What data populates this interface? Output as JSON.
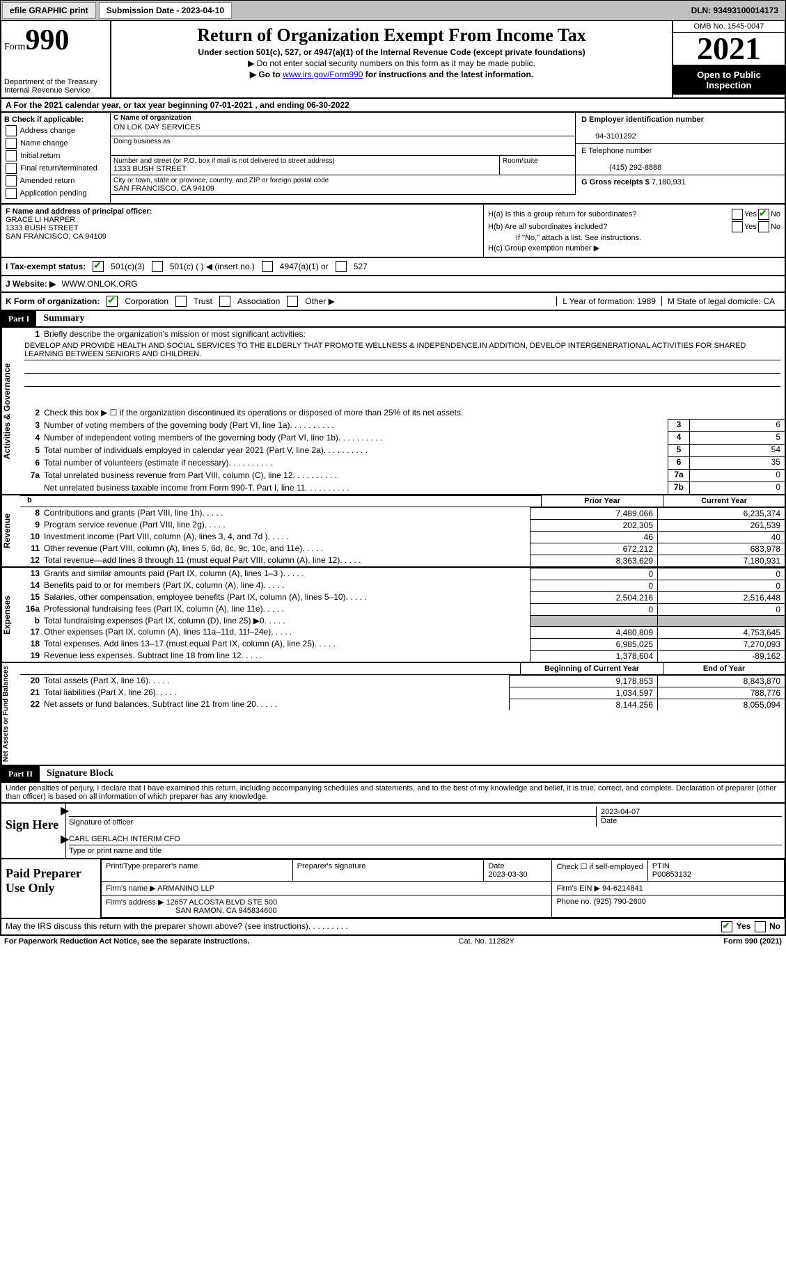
{
  "topbar": {
    "efile": "efile GRAPHIC print",
    "submission": "Submission Date - 2023-04-10",
    "dln": "DLN: 93493100014173"
  },
  "header": {
    "form_word": "Form",
    "form_num": "990",
    "dept": "Department of the Treasury Internal Revenue Service",
    "title": "Return of Organization Exempt From Income Tax",
    "subtitle": "Under section 501(c), 527, or 4947(a)(1) of the Internal Revenue Code (except private foundations)",
    "note1": "▶ Do not enter social security numbers on this form as it may be made public.",
    "note2_pre": "▶ Go to ",
    "note2_link": "www.irs.gov/Form990",
    "note2_post": " for instructions and the latest information.",
    "omb": "OMB No. 1545-0047",
    "year": "2021",
    "open": "Open to Public Inspection"
  },
  "rowA": "A  For the 2021 calendar year, or tax year beginning 07-01-2021   , and ending 06-30-2022",
  "sectionB": {
    "title": "B Check if applicable:",
    "opts": [
      "Address change",
      "Name change",
      "Initial return",
      "Final return/terminated",
      "Amended return",
      "Application pending"
    ]
  },
  "sectionC": {
    "name_lbl": "C Name of organization",
    "name": "ON LOK DAY SERVICES",
    "dba_lbl": "Doing business as",
    "addr_lbl": "Number and street (or P.O. box if mail is not delivered to street address)",
    "addr": "1333 BUSH STREET",
    "room_lbl": "Room/suite",
    "city_lbl": "City or town, state or province, country, and ZIP or foreign postal code",
    "city": "SAN FRANCISCO, CA  94109"
  },
  "sectionD": {
    "lbl": "D Employer identification number",
    "val": "94-3101292"
  },
  "sectionE": {
    "lbl": "E Telephone number",
    "val": "(415) 292-8888"
  },
  "sectionG": {
    "lbl": "G Gross receipts $",
    "val": "7,180,931"
  },
  "sectionF": {
    "lbl": "F Name and address of principal officer:",
    "name": "GRACE LI HARPER",
    "addr1": "1333 BUSH STREET",
    "addr2": "SAN FRANCISCO, CA  94109"
  },
  "sectionH": {
    "ha": "H(a)  Is this a group return for subordinates?",
    "hb": "H(b)  Are all subordinates included?",
    "hb_note": "If \"No,\" attach a list. See instructions.",
    "hc": "H(c)  Group exemption number ▶",
    "yes": "Yes",
    "no": "No"
  },
  "rowI": {
    "lbl": "I   Tax-exempt status:",
    "o1": "501(c)(3)",
    "o2": "501(c) (  ) ◀ (insert no.)",
    "o3": "4947(a)(1) or",
    "o4": "527"
  },
  "rowJ": {
    "lbl": "J   Website: ▶",
    "val": "WWW.ONLOK.ORG"
  },
  "rowK": {
    "lbl": "K Form of organization:",
    "o1": "Corporation",
    "o2": "Trust",
    "o3": "Association",
    "o4": "Other ▶",
    "L": "L Year of formation: 1989",
    "M": "M State of legal domicile: CA"
  },
  "part1": {
    "num": "Part I",
    "title": "Summary"
  },
  "summary": {
    "side1": "Activities & Governance",
    "side2": "Revenue",
    "side3": "Expenses",
    "side4": "Net Assets or Fund Balances",
    "l1_lbl": "Briefly describe the organization's mission or most significant activities:",
    "l1_text": "DEVELOP AND PROVIDE HEALTH AND SOCIAL SERVICES TO THE ELDERLY THAT PROMOTE WELLNESS & INDEPENDENCE.IN ADDITION, DEVELOP INTERGENERATIONAL ACTIVITIES FOR SHARED LEARNING BETWEEN SENIORS AND CHILDREN.",
    "l2": "Check this box ▶ ☐ if the organization discontinued its operations or disposed of more than 25% of its net assets.",
    "rows_gov": [
      {
        "n": "3",
        "t": "Number of voting members of the governing body (Part VI, line 1a)",
        "box": "3",
        "v": "6"
      },
      {
        "n": "4",
        "t": "Number of independent voting members of the governing body (Part VI, line 1b)",
        "box": "4",
        "v": "5"
      },
      {
        "n": "5",
        "t": "Total number of individuals employed in calendar year 2021 (Part V, line 2a)",
        "box": "5",
        "v": "54"
      },
      {
        "n": "6",
        "t": "Total number of volunteers (estimate if necessary)",
        "box": "6",
        "v": "35"
      },
      {
        "n": "7a",
        "t": "Total unrelated business revenue from Part VIII, column (C), line 12",
        "box": "7a",
        "v": "0"
      },
      {
        "n": "",
        "t": "Net unrelated business taxable income from Form 990-T, Part I, line 11",
        "box": "7b",
        "v": "0"
      }
    ],
    "prior": "Prior Year",
    "current": "Current Year",
    "beginning": "Beginning of Current Year",
    "end": "End of Year",
    "rev": [
      {
        "n": "8",
        "t": "Contributions and grants (Part VIII, line 1h)",
        "p": "7,489,066",
        "c": "6,235,374"
      },
      {
        "n": "9",
        "t": "Program service revenue (Part VIII, line 2g)",
        "p": "202,305",
        "c": "261,539"
      },
      {
        "n": "10",
        "t": "Investment income (Part VIII, column (A), lines 3, 4, and 7d )",
        "p": "46",
        "c": "40"
      },
      {
        "n": "11",
        "t": "Other revenue (Part VIII, column (A), lines 5, 6d, 8c, 9c, 10c, and 11e)",
        "p": "672,212",
        "c": "683,978"
      },
      {
        "n": "12",
        "t": "Total revenue—add lines 8 through 11 (must equal Part VIII, column (A), line 12)",
        "p": "8,363,629",
        "c": "7,180,931"
      }
    ],
    "exp": [
      {
        "n": "13",
        "t": "Grants and similar amounts paid (Part IX, column (A), lines 1–3 )",
        "p": "0",
        "c": "0"
      },
      {
        "n": "14",
        "t": "Benefits paid to or for members (Part IX, column (A), line 4)",
        "p": "0",
        "c": "0"
      },
      {
        "n": "15",
        "t": "Salaries, other compensation, employee benefits (Part IX, column (A), lines 5–10)",
        "p": "2,504,216",
        "c": "2,516,448"
      },
      {
        "n": "16a",
        "t": "Professional fundraising fees (Part IX, column (A), line 11e)",
        "p": "0",
        "c": "0"
      },
      {
        "n": "b",
        "t": "Total fundraising expenses (Part IX, column (D), line 25) ▶0",
        "p": "",
        "c": "",
        "shaded": true
      },
      {
        "n": "17",
        "t": "Other expenses (Part IX, column (A), lines 11a–11d, 11f–24e)",
        "p": "4,480,809",
        "c": "4,753,645"
      },
      {
        "n": "18",
        "t": "Total expenses. Add lines 13–17 (must equal Part IX, column (A), line 25)",
        "p": "6,985,025",
        "c": "7,270,093"
      },
      {
        "n": "19",
        "t": "Revenue less expenses. Subtract line 18 from line 12",
        "p": "1,378,604",
        "c": "-89,162"
      }
    ],
    "net": [
      {
        "n": "20",
        "t": "Total assets (Part X, line 16)",
        "p": "9,178,853",
        "c": "8,843,870"
      },
      {
        "n": "21",
        "t": "Total liabilities (Part X, line 26)",
        "p": "1,034,597",
        "c": "788,776"
      },
      {
        "n": "22",
        "t": "Net assets or fund balances. Subtract line 21 from line 20",
        "p": "8,144,256",
        "c": "8,055,094"
      }
    ]
  },
  "part2": {
    "num": "Part II",
    "title": "Signature Block"
  },
  "sig": {
    "penalties": "Under penalties of perjury, I declare that I have examined this return, including accompanying schedules and statements, and to the best of my knowledge and belief, it is true, correct, and complete. Declaration of preparer (other than officer) is based on all information of which preparer has any knowledge.",
    "sign_here": "Sign Here",
    "sig_officer": "Signature of officer",
    "date": "Date",
    "date_val": "2023-04-07",
    "name_title": "CARL GERLACH  INTERIM CFO",
    "type_print": "Type or print name and title"
  },
  "paid": {
    "lbl": "Paid Preparer Use Only",
    "h1": "Print/Type preparer's name",
    "h2": "Preparer's signature",
    "h3": "Date",
    "h3v": "2023-03-30",
    "h4": "Check ☐ if self-employed",
    "h5": "PTIN",
    "h5v": "P00853132",
    "firm_name_lbl": "Firm's name    ▶",
    "firm_name": "ARMANINO LLP",
    "firm_ein_lbl": "Firm's EIN ▶",
    "firm_ein": "94-6214841",
    "firm_addr_lbl": "Firm's address ▶",
    "firm_addr1": "12657 ALCOSTA BLVD STE 500",
    "firm_addr2": "SAN RAMON, CA  945834600",
    "phone_lbl": "Phone no.",
    "phone": "(925) 790-2600"
  },
  "discuss": {
    "text": "May the IRS discuss this return with the preparer shown above? (see instructions)",
    "yes": "Yes",
    "no": "No"
  },
  "footer": {
    "left": "For Paperwork Reduction Act Notice, see the separate instructions.",
    "center": "Cat. No. 11282Y",
    "right": "Form 990 (2021)"
  }
}
